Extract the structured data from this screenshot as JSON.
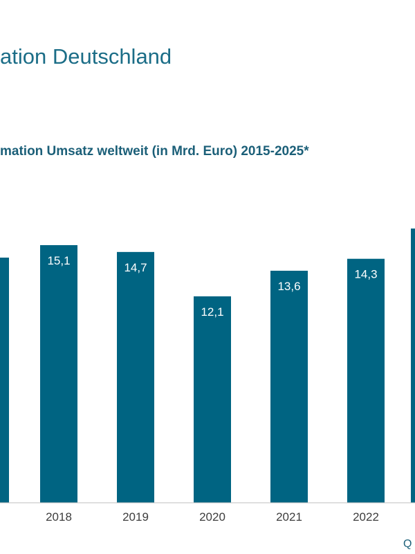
{
  "page": {
    "title": "ation Deutschland",
    "source_prefix": "Q"
  },
  "chart_data": {
    "type": "bar",
    "title": "mation Umsatz weltweit (in Mrd. Euro) 2015-2025*",
    "xlabel": "",
    "ylabel": "",
    "categories": [
      "2018",
      "2019",
      "2020",
      "2021",
      "2022"
    ],
    "values": [
      15.1,
      14.7,
      12.1,
      13.6,
      14.3
    ],
    "value_labels": [
      "15,1",
      "14,7",
      "12,1",
      "13,6",
      "14,3"
    ],
    "ylim": [
      0,
      15.1
    ],
    "grid": false,
    "bar_color": "#006482",
    "partial_bars_clipped": "left and right edges cut off"
  }
}
